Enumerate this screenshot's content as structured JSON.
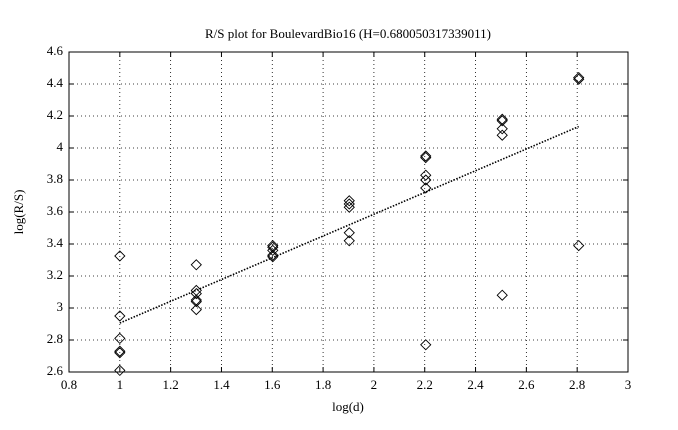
{
  "chart_data": {
    "type": "scatter",
    "title": "R/S plot for BoulevardBio16 (H=0.680050317339011)",
    "x_label": "log(d)",
    "y_label": "log(R/S)",
    "x": [
      1,
      1,
      1,
      1,
      1,
      1,
      1.301,
      1.301,
      1.301,
      1.301,
      1.301,
      1.301,
      1.602,
      1.602,
      1.602,
      1.602,
      1.602,
      1.903,
      1.903,
      1.903,
      1.903,
      1.903,
      2.204,
      2.204,
      2.204,
      2.204,
      2.204,
      2.204,
      2.505,
      2.505,
      2.505,
      2.505,
      2.505,
      2.806,
      2.806,
      2.806
    ],
    "values": [
      3.325,
      2.95,
      2.81,
      2.73,
      2.72,
      2.61,
      3.27,
      3.11,
      3.09,
      3.05,
      3.04,
      2.99,
      3.39,
      3.38,
      3.36,
      3.33,
      3.32,
      3.67,
      3.65,
      3.63,
      3.47,
      3.42,
      3.95,
      3.94,
      3.83,
      3.8,
      3.75,
      2.77,
      4.18,
      4.17,
      4.12,
      4.08,
      3.08,
      4.44,
      4.43,
      3.39
    ],
    "color": "#000000",
    "fit_line": {
      "x": [
        1,
        2.806
      ],
      "values": [
        2.906,
        4.134
      ]
    },
    "xlim": [
      0.8,
      3
    ],
    "xticks": [
      0.8,
      1,
      1.2,
      1.4,
      1.6,
      1.8,
      2,
      2.2,
      2.4,
      2.6,
      2.8,
      3
    ],
    "ylim": [
      2.6,
      4.6
    ],
    "yticks": [
      2.6,
      2.8,
      3,
      3.2,
      3.4,
      3.6,
      3.8,
      4,
      4.2,
      4.4,
      4.6
    ],
    "grid": true
  }
}
